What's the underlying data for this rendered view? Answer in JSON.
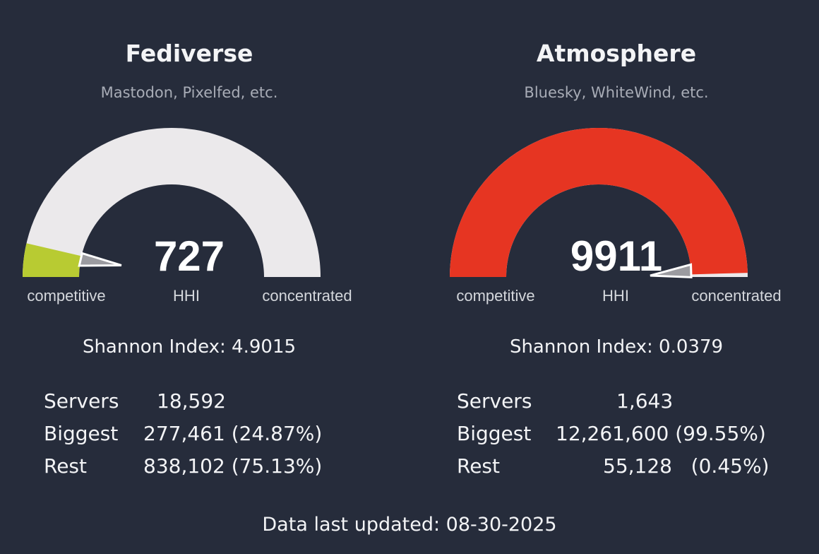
{
  "colors": {
    "background": "#262c3b",
    "gauge_track": "#ebe9eb",
    "fediverse_fill": "#b8cb32",
    "atmosphere_fill": "#e63522",
    "needle": "#9b9ba0"
  },
  "panels": [
    {
      "title": "Fediverse",
      "subtitle": "Mastodon, Pixelfed, etc.",
      "hhi": "727",
      "hhi_label": "HHI",
      "gauge_fraction": 0.0727,
      "label_competitive": "competitive",
      "label_concentrated": "concentrated",
      "shannon": "Shannon Index: 4.9015",
      "stats": [
        {
          "label": "Servers",
          "value": "18,592"
        },
        {
          "label": "Biggest",
          "value": "277,461 (24.87%)"
        },
        {
          "label": "Rest",
          "value": "838,102 (75.13%)"
        }
      ]
    },
    {
      "title": "Atmosphere",
      "subtitle": "Bluesky, WhiteWind, etc.",
      "hhi": "9911",
      "hhi_label": "HHI",
      "gauge_fraction": 0.9911,
      "label_competitive": "competitive",
      "label_concentrated": "concentrated",
      "shannon": "Shannon Index: 0.0379",
      "stats": [
        {
          "label": "Servers",
          "value": "1,643"
        },
        {
          "label": "Biggest",
          "value": "12,261,600 (99.55%)"
        },
        {
          "label": "Rest",
          "value": "55,128   (0.45%)"
        }
      ]
    }
  ],
  "footer": "Data last updated: 08-30-2025"
}
